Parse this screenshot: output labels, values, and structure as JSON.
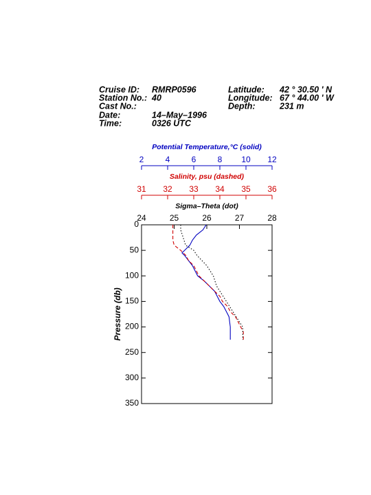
{
  "chart_data": {
    "type": "profile",
    "header": {
      "left": [
        {
          "label": "Cruise ID:",
          "value": "RMRP0596"
        },
        {
          "label": "Station No.:",
          "value": "40"
        },
        {
          "label": "Cast No.:"
        },
        {
          "label": "Date:",
          "value": "14–May–1996"
        },
        {
          "label": "Time:",
          "value": "0326 UTC"
        }
      ],
      "right": [
        {
          "label": "Latitude:",
          "value": "42 °  30.50 ' N"
        },
        {
          "label": "Longitude:",
          "value": "67 °  44.00 ' W"
        },
        {
          "label": "Depth:",
          "value": "231 m"
        }
      ]
    },
    "ylabel": "Pressure (db)",
    "ylim": [
      0,
      350
    ],
    "yticks": [
      0,
      50,
      100,
      150,
      200,
      250,
      300,
      350
    ],
    "y": [
      0,
      10,
      20,
      30,
      40,
      50,
      55,
      60,
      70,
      80,
      90,
      100,
      110,
      120,
      130,
      140,
      150,
      160,
      170,
      180,
      200,
      210,
      225
    ],
    "axes": [
      {
        "label": "Potential Temperature,°C (solid)",
        "color": "#0000c0",
        "lim": [
          2,
          12
        ],
        "ticks": [
          2,
          4,
          6,
          8,
          10,
          12
        ]
      },
      {
        "label": "Salinity, psu  (dashed)",
        "color": "#d00000",
        "lim": [
          31,
          36
        ],
        "ticks": [
          31,
          32,
          33,
          34,
          35,
          36
        ]
      },
      {
        "label": "Sigma–Theta (dot)",
        "color": "#000000",
        "lim": [
          24,
          28
        ],
        "ticks": [
          24,
          25,
          26,
          27,
          28
        ]
      }
    ],
    "series": [
      {
        "axis": 0,
        "color": "#0000c0",
        "dash": "solid",
        "values": [
          6.95,
          6.7,
          6.2,
          5.9,
          5.7,
          5.3,
          5.1,
          5.3,
          5.6,
          5.9,
          6.1,
          6.3,
          6.8,
          7.2,
          7.6,
          7.8,
          8.0,
          8.3,
          8.5,
          8.7,
          8.8,
          8.8,
          8.8
        ]
      },
      {
        "axis": 1,
        "color": "#d00000",
        "dash": "dashed",
        "values": [
          32.2,
          32.2,
          32.2,
          32.2,
          32.25,
          32.5,
          32.6,
          32.7,
          32.8,
          33.0,
          33.1,
          33.2,
          33.4,
          33.6,
          33.8,
          34.0,
          34.1,
          34.3,
          34.4,
          34.6,
          34.8,
          34.9,
          34.9
        ]
      },
      {
        "axis": 2,
        "color": "#000000",
        "dash": "dotted",
        "values": [
          25.2,
          25.2,
          25.25,
          25.3,
          25.35,
          25.6,
          25.65,
          25.7,
          25.85,
          26.0,
          26.1,
          26.2,
          26.25,
          26.3,
          26.4,
          26.5,
          26.6,
          26.7,
          26.8,
          26.9,
          27.1,
          27.1,
          27.1
        ]
      }
    ]
  }
}
